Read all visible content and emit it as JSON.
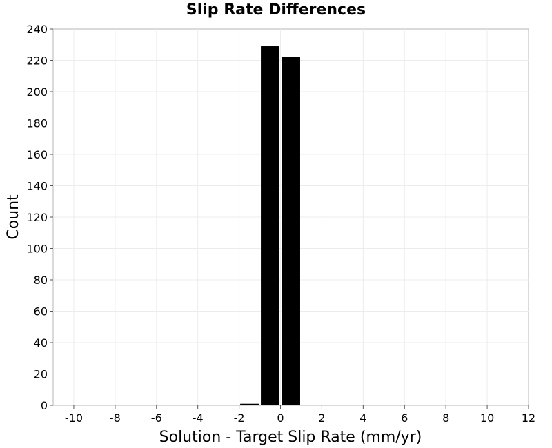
{
  "chart_data": {
    "type": "bar",
    "title": "Slip Rate Differences",
    "xlabel": "Solution - Target Slip Rate (mm/yr)",
    "ylabel": "Count",
    "xlim": [
      -11,
      12
    ],
    "ylim": [
      0,
      240
    ],
    "x_ticks": [
      -10,
      -8,
      -6,
      -4,
      -2,
      0,
      2,
      4,
      6,
      8,
      10,
      12
    ],
    "y_ticks": [
      0,
      20,
      40,
      60,
      80,
      100,
      120,
      140,
      160,
      180,
      200,
      220,
      240
    ],
    "bin_width": 1,
    "bins": [
      {
        "start": -2,
        "end": -1,
        "count": 1
      },
      {
        "start": -1,
        "end": 0,
        "count": 229
      },
      {
        "start": 0,
        "end": 1,
        "count": 222
      }
    ],
    "grid": true,
    "bar_color": "#000000",
    "grid_color": "#ececec"
  }
}
